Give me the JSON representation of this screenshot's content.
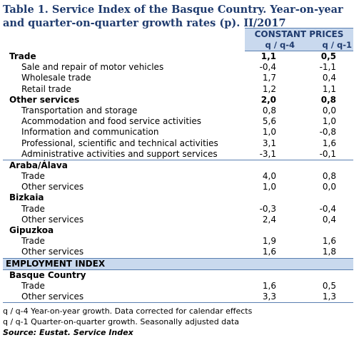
{
  "title": "Table 1. Service Index of the Basque Country. Year-on-year and quarter-on-quarter growth rates (p). II/2017",
  "header": {
    "group": "CONSTANT PRICES",
    "col1": "q / q-4",
    "col2": "q / q-1"
  },
  "rows": [
    {
      "label": "Trade",
      "v1": "1,1",
      "v2": "0,5",
      "style": "bold"
    },
    {
      "label": "Sale and repair of motor vehicles",
      "v1": "-0,4",
      "v2": "-1,1",
      "style": "sub"
    },
    {
      "label": "Wholesale trade",
      "v1": "1,7",
      "v2": "0,4",
      "style": "sub"
    },
    {
      "label": "Retail trade",
      "v1": "1,2",
      "v2": "1,1",
      "style": "sub"
    },
    {
      "label": "Other services",
      "v1": "2,0",
      "v2": "0,8",
      "style": "bold"
    },
    {
      "label": "Transportation and storage",
      "v1": "0,8",
      "v2": "0,0",
      "style": "sub"
    },
    {
      "label": "Acommodation and food service activities",
      "v1": "5,6",
      "v2": "1,0",
      "style": "sub"
    },
    {
      "label": "Information and communication",
      "v1": "1,0",
      "v2": "-0,8",
      "style": "sub"
    },
    {
      "label": "Professional, scientific and technical activities",
      "v1": "3,1",
      "v2": "1,6",
      "style": "sub"
    },
    {
      "label": "Administrative activities and support services",
      "v1": "-3,1",
      "v2": "-0,1",
      "style": "sub"
    },
    {
      "label": "Araba/Álava",
      "v1": "",
      "v2": "",
      "style": "bold gap-top"
    },
    {
      "label": "Trade",
      "v1": "4,0",
      "v2": "0,8",
      "style": "sub"
    },
    {
      "label": "Other services",
      "v1": "1,0",
      "v2": "0,0",
      "style": "sub"
    },
    {
      "label": "Bizkaia",
      "v1": "",
      "v2": "",
      "style": "bold"
    },
    {
      "label": "Trade",
      "v1": "-0,3",
      "v2": "-0,4",
      "style": "sub"
    },
    {
      "label": "Other services",
      "v1": "2,4",
      "v2": "0,4",
      "style": "sub"
    },
    {
      "label": "Gipuzkoa",
      "v1": "",
      "v2": "",
      "style": "bold"
    },
    {
      "label": "Trade",
      "v1": "1,9",
      "v2": "1,6",
      "style": "sub"
    },
    {
      "label": "Other services",
      "v1": "1,6",
      "v2": "1,8",
      "style": "sub"
    },
    {
      "label": "EMPLOYMENT INDEX",
      "v1": "",
      "v2": "",
      "style": "emp"
    },
    {
      "label": "Basque Country",
      "v1": "",
      "v2": "",
      "style": "bold"
    },
    {
      "label": "Trade",
      "v1": "1,6",
      "v2": "0,5",
      "style": "sub"
    },
    {
      "label": "Other services",
      "v1": "3,3",
      "v2": "1,3",
      "style": "sub bottom-line"
    }
  ],
  "notes": [
    "q / q-4 Year-on-year growth. Data corrected for calendar effects",
    "q / q-1 Quarter-on-quarter growth. Seasonally adjusted data"
  ],
  "source": "Source: Eustat. Service Index"
}
